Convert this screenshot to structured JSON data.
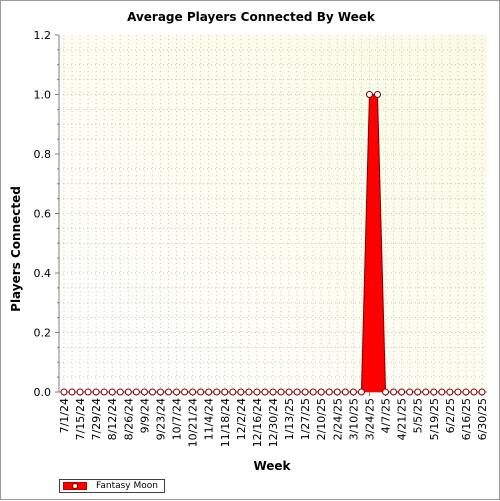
{
  "chart_data": {
    "type": "area",
    "title": "Average Players Connected By Week",
    "xlabel": "Week",
    "ylabel": "Players Connected",
    "ylim": [
      0,
      1.2
    ],
    "yticks": [
      "0.0",
      "0.2",
      "0.4",
      "0.6",
      "0.8",
      "1.0",
      "1.2"
    ],
    "grid": true,
    "legend_position": "bottom-left",
    "tick_labels": [
      "7/1/24",
      "7/15/24",
      "7/29/24",
      "8/12/24",
      "8/26/24",
      "9/9/24",
      "9/23/24",
      "10/7/24",
      "10/21/24",
      "11/4/24",
      "11/18/24",
      "12/2/24",
      "12/16/24",
      "12/30/24",
      "1/13/25",
      "1/27/25",
      "2/10/25",
      "2/24/25",
      "3/10/25",
      "3/24/25",
      "4/7/25",
      "4/21/25",
      "5/5/25",
      "5/19/25",
      "6/2/25",
      "6/16/25",
      "6/30/25"
    ],
    "x": [
      "7/1/24",
      "7/8/24",
      "7/15/24",
      "7/22/24",
      "7/29/24",
      "8/5/24",
      "8/12/24",
      "8/19/24",
      "8/26/24",
      "9/2/24",
      "9/9/24",
      "9/16/24",
      "9/23/24",
      "9/30/24",
      "10/7/24",
      "10/14/24",
      "10/21/24",
      "10/28/24",
      "11/4/24",
      "11/11/24",
      "11/18/24",
      "11/25/24",
      "12/2/24",
      "12/9/24",
      "12/16/24",
      "12/23/24",
      "12/30/24",
      "1/6/25",
      "1/13/25",
      "1/20/25",
      "1/27/25",
      "2/3/25",
      "2/10/25",
      "2/17/25",
      "2/24/25",
      "3/3/25",
      "3/10/25",
      "3/17/25",
      "3/24/25",
      "3/31/25",
      "4/7/25",
      "4/14/25",
      "4/21/25",
      "4/28/25",
      "5/5/25",
      "5/12/25",
      "5/19/25",
      "5/26/25",
      "6/2/25",
      "6/9/25",
      "6/16/25",
      "6/23/25",
      "6/30/25"
    ],
    "series": [
      {
        "name": "Fantasy Moon",
        "color": "#ff0000",
        "values": [
          0,
          0,
          0,
          0,
          0,
          0,
          0,
          0,
          0,
          0,
          0,
          0,
          0,
          0,
          0,
          0,
          0,
          0,
          0,
          0,
          0,
          0,
          0,
          0,
          0,
          0,
          0,
          0,
          0,
          0,
          0,
          0,
          0,
          0,
          0,
          0,
          0,
          0,
          1,
          1,
          0,
          0,
          0,
          0,
          0,
          0,
          0,
          0,
          0,
          0,
          0,
          0,
          0
        ]
      }
    ],
    "colors": {
      "plot_bg_start": "#fafae3",
      "plot_bg_end": "#ffffff",
      "grid": "#c8c8c8",
      "fill": "#ff0000",
      "line": "#800000"
    }
  }
}
